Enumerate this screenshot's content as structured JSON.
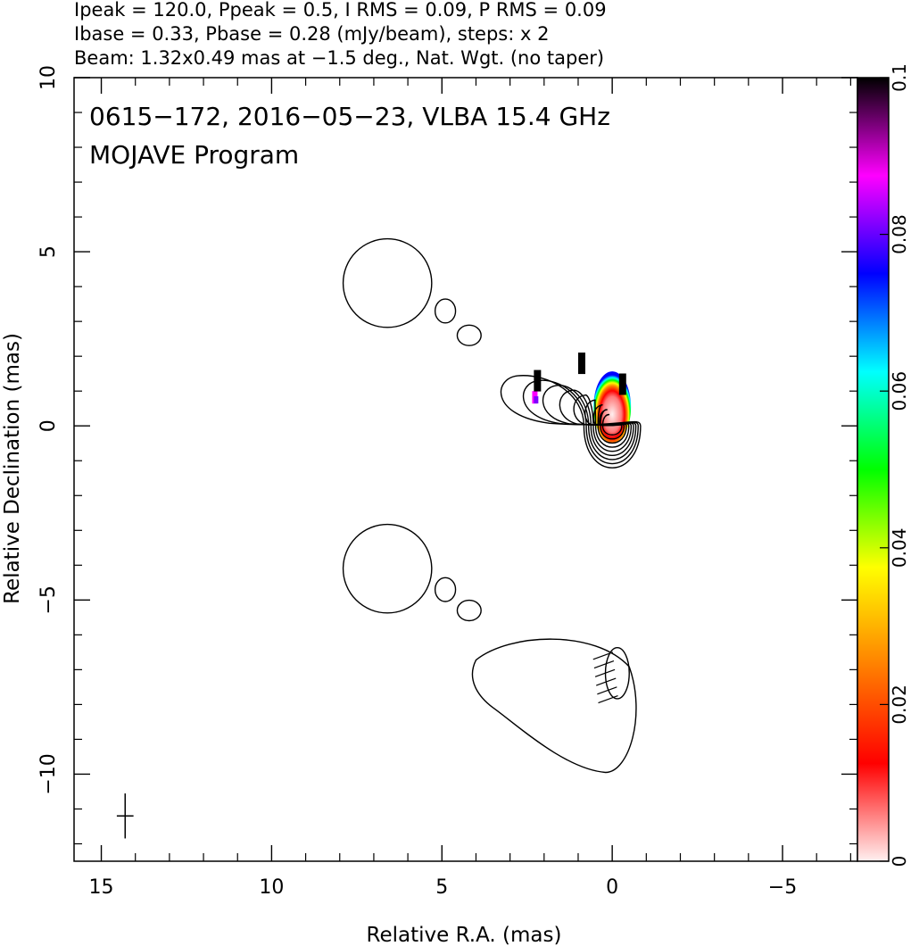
{
  "header": {
    "line1": "Ipeak = 120.0, Ppeak = 0.5, I RMS = 0.09, P RMS = 0.09",
    "line2": "Ibase = 0.33, Pbase = 0.28 (mJy/beam), steps: x 2",
    "line3": "Beam: 1.32x0.49 mas at −1.5 deg., Nat. Wgt. (no taper)"
  },
  "chart_data": {
    "type": "contour",
    "title": "0615−172, 2016−05−23, VLBA 15.4 GHz",
    "subtitle": "MOJAVE Program",
    "xlabel": "Relative R.A. (mas)",
    "ylabel": "Relative Declination (mas)",
    "xlim": [
      15.8,
      -7.2
    ],
    "ylim": [
      -12.5,
      10.0
    ],
    "xticks": [
      15,
      10,
      5,
      0,
      -5
    ],
    "yticks": [
      10,
      5,
      0,
      -5,
      -10
    ],
    "xtick_labels": [
      "15",
      "10",
      "5",
      "0",
      "−5"
    ],
    "ytick_labels": [
      "10",
      "5",
      "0",
      "−5",
      "−10"
    ],
    "colorbar": {
      "range": [
        0,
        0.1
      ],
      "ticks": [
        0,
        0.02,
        0.04,
        0.06,
        0.08,
        0.1
      ],
      "tick_labels": [
        "0",
        "0.02",
        "0.04",
        "0.06",
        "0.08",
        "0.1"
      ],
      "colormap": [
        "#fff0f0",
        "#ff0000",
        "#ff8000",
        "#ffff00",
        "#00ff00",
        "#00ffff",
        "#0000ff",
        "#ff00ff",
        "#000000"
      ]
    },
    "core": {
      "x": 0.0,
      "y": 0.0
    },
    "beam": {
      "major": 1.32,
      "minor": 0.49,
      "pa_deg": -1.5,
      "x": 14.3,
      "y": -11.2
    },
    "contour_levels": {
      "base": 0.33,
      "step_factor": 2,
      "count": 9
    },
    "upper_components": [
      {
        "x": 6.6,
        "y": 4.1,
        "w": 1.3,
        "h": 1.3
      },
      {
        "x": 4.9,
        "y": 3.3,
        "w": 0.3,
        "h": 0.35
      },
      {
        "x": 4.2,
        "y": 2.6,
        "w": 0.35,
        "h": 0.3
      }
    ],
    "lower_components": [
      {
        "x": 6.6,
        "y": -4.1,
        "w": 1.3,
        "h": 1.3
      },
      {
        "x": 4.9,
        "y": -4.7,
        "w": 0.3,
        "h": 0.35
      },
      {
        "x": 4.2,
        "y": -5.3,
        "w": 0.35,
        "h": 0.3
      }
    ],
    "polarization_ticks": [
      {
        "x": 2.3,
        "y": 1.4
      },
      {
        "x": 1.0,
        "y": 1.9
      },
      {
        "x": -0.2,
        "y": 1.3
      }
    ]
  }
}
